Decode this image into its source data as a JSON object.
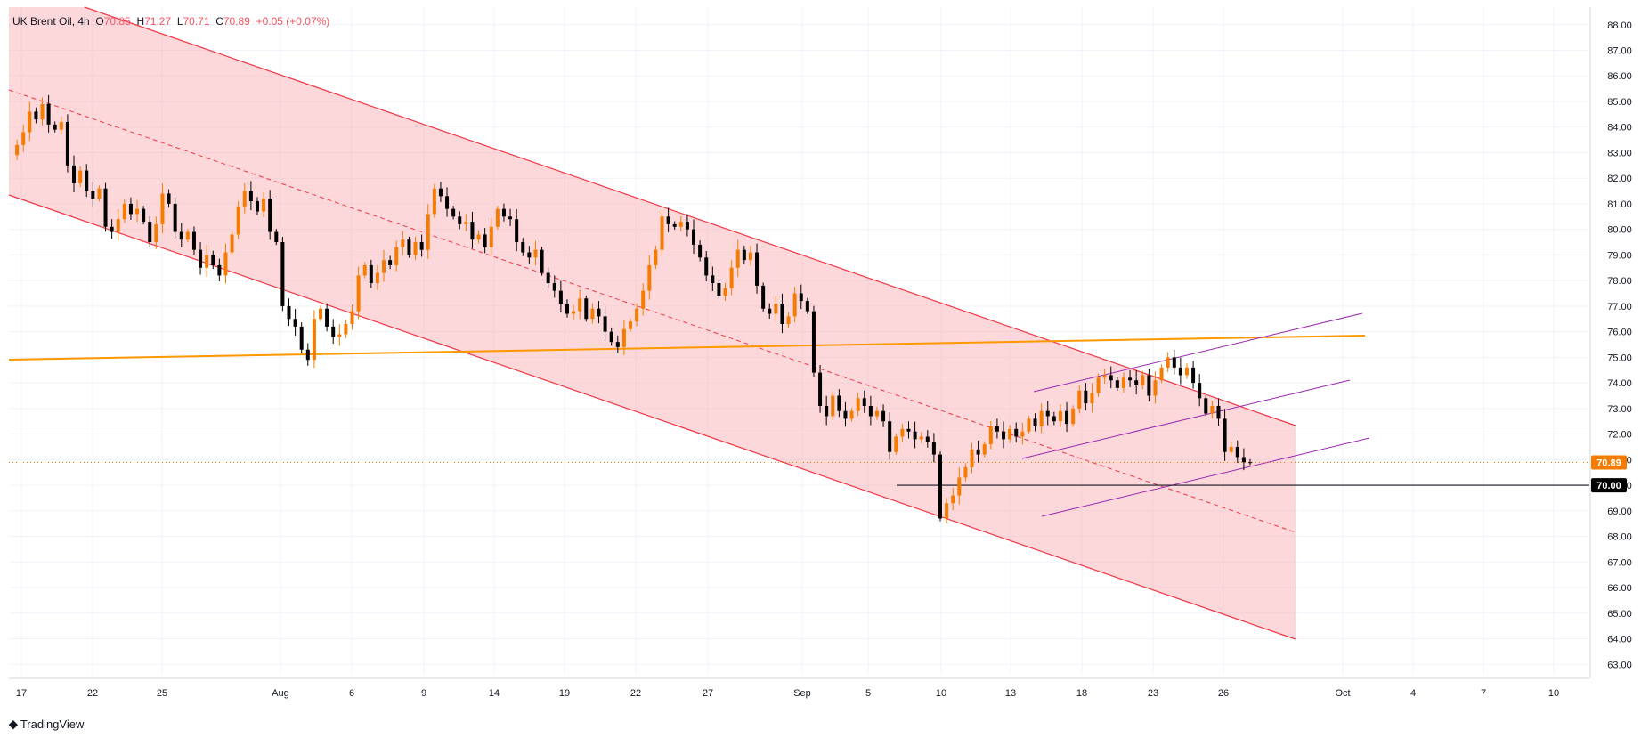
{
  "legend": {
    "symbol": "UK Brent Oil",
    "interval": "4h",
    "o_label": "O",
    "o_value": "70.85",
    "h_label": "H",
    "h_value": "71.27",
    "l_label": "L",
    "l_value": "70.71",
    "c_label": "C",
    "c_value": "70.89",
    "change": "+0.05 (+0.07%)"
  },
  "branding": {
    "logo_text": "TradingView"
  },
  "colors": {
    "up": "#f57c00",
    "down": "#000000",
    "channel_fill": "#f8a9b0",
    "channel_line": "#f23645",
    "orange_line": "#ff9800",
    "purple_line": "#9c27b0",
    "price_badge": "#f57c00",
    "level_badge": "#000000"
  },
  "chart_data": {
    "type": "candlestick",
    "title": "UK Brent Oil",
    "interval": "4h",
    "last_price": 70.89,
    "last_price_label": "70.89",
    "level_label": "70.00",
    "level": 70.0,
    "ylim": [
      62.5,
      88.5
    ],
    "y_ticks": [
      "63.00",
      "64.00",
      "65.00",
      "66.00",
      "67.00",
      "68.00",
      "69.00",
      "70.00",
      "71.00",
      "72.00",
      "73.00",
      "74.00",
      "75.00",
      "76.00",
      "77.00",
      "78.00",
      "79.00",
      "80.00",
      "81.00",
      "82.00",
      "83.00",
      "84.00",
      "85.00",
      "86.00",
      "87.00",
      "88.00"
    ],
    "x_ticks": [
      "17",
      "22",
      "25",
      "Aug",
      "6",
      "9",
      "14",
      "19",
      "22",
      "27",
      "Sep",
      "5",
      "10",
      "13",
      "18",
      "23",
      "26",
      "Oct",
      "4",
      "7",
      "10"
    ],
    "closes": [
      82.9,
      83.3,
      83.8,
      84.6,
      84.3,
      84.9,
      84.1,
      83.9,
      84.2,
      82.5,
      81.8,
      82.3,
      81.5,
      81.2,
      81.6,
      80.1,
      79.9,
      80.4,
      81.0,
      80.6,
      80.8,
      80.3,
      79.5,
      80.2,
      81.4,
      81.0,
      79.9,
      79.6,
      79.9,
      79.2,
      78.5,
      79.0,
      78.6,
      78.2,
      79.1,
      79.8,
      80.9,
      81.5,
      81.1,
      80.7,
      81.2,
      79.9,
      79.5,
      77.0,
      76.5,
      76.2,
      75.3,
      74.9,
      76.5,
      76.9,
      76.2,
      75.8,
      75.9,
      76.3,
      76.8,
      78.2,
      78.6,
      77.9,
      78.3,
      78.8,
      78.6,
      79.3,
      79.6,
      79.0,
      79.5,
      79.2,
      80.6,
      81.6,
      81.3,
      80.8,
      80.5,
      80.2,
      80.3,
      79.6,
      79.8,
      79.3,
      80.1,
      80.8,
      80.5,
      80.4,
      79.5,
      79.1,
      78.9,
      79.2,
      78.3,
      77.9,
      77.6,
      77.1,
      76.7,
      76.8,
      77.3,
      76.5,
      76.9,
      76.6,
      76.0,
      75.6,
      75.4,
      76.1,
      76.4,
      76.9,
      77.6,
      78.6,
      79.2,
      80.5,
      80.2,
      80.1,
      80.3,
      80.0,
      79.4,
      78.9,
      78.2,
      77.9,
      77.4,
      77.7,
      78.5,
      79.2,
      78.8,
      79.1,
      77.8,
      76.9,
      76.7,
      77.1,
      76.3,
      76.6,
      77.5,
      77.2,
      76.8,
      74.4,
      73.1,
      72.7,
      73.5,
      72.9,
      72.6,
      72.9,
      73.4,
      73.1,
      72.7,
      72.9,
      72.5,
      71.3,
      71.9,
      72.2,
      72.1,
      71.8,
      71.9,
      71.7,
      71.2,
      68.7,
      69.3,
      69.6,
      70.3,
      70.7,
      71.4,
      71.2,
      71.6,
      72.3,
      72.1,
      71.8,
      72.2,
      71.9,
      72.1,
      72.6,
      72.3,
      72.9,
      72.7,
      72.5,
      72.9,
      72.4,
      73.0,
      73.7,
      73.2,
      73.6,
      74.2,
      74.3,
      74.1,
      73.8,
      74.2,
      74.1,
      73.9,
      74.3,
      73.5,
      74.1,
      74.6,
      75.0,
      74.6,
      74.3,
      74.6,
      74.0,
      73.4,
      72.8,
      73.1,
      72.6,
      71.3,
      71.5,
      71.1,
      70.9,
      70.89
    ]
  }
}
